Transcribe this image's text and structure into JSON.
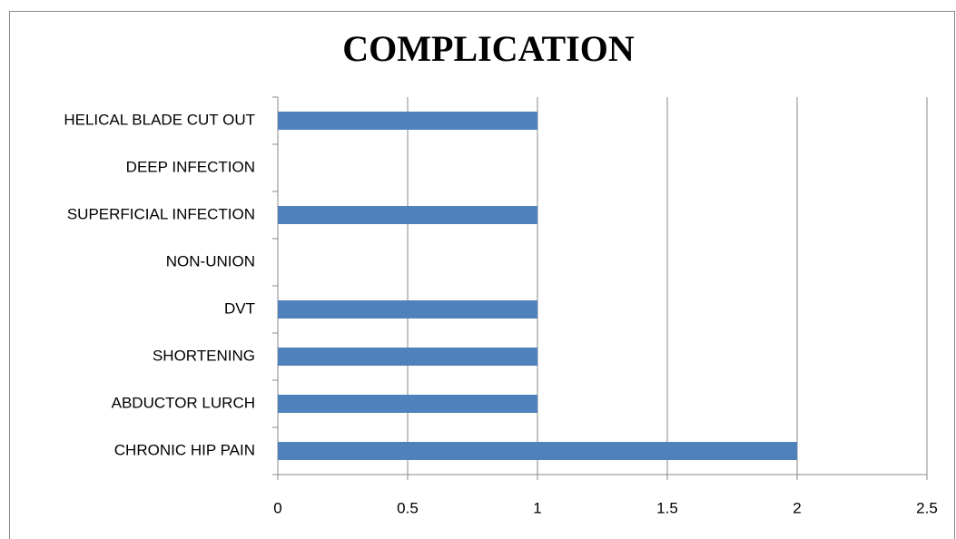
{
  "chart_data": {
    "type": "bar",
    "orientation": "horizontal",
    "title": "COMPLICATION",
    "categories": [
      "HELICAL BLADE CUT OUT",
      "DEEP INFECTION",
      "SUPERFICIAL INFECTION",
      "NON-UNION",
      "DVT",
      "SHORTENING",
      "ABDUCTOR LURCH",
      "CHRONIC HIP PAIN"
    ],
    "values": [
      1,
      0,
      1,
      0,
      1,
      1,
      1,
      2
    ],
    "color": "#4f81bd",
    "xlim": [
      0,
      2.5
    ],
    "xticks": [
      0,
      0.5,
      1,
      1.5,
      2,
      2.5
    ],
    "grid": true
  }
}
